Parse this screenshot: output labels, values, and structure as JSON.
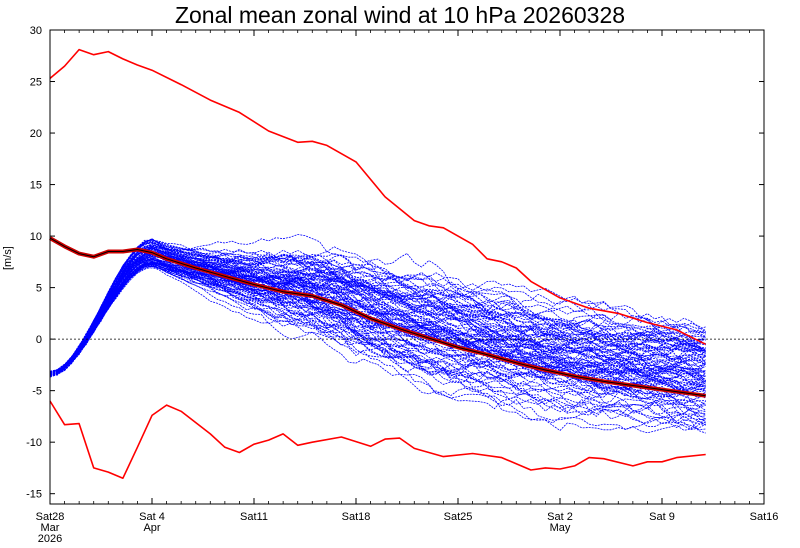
{
  "chart_data": {
    "type": "line",
    "title": "Zonal mean zonal wind at 10 hPa 20260328",
    "ylabel": "[m/s]",
    "ylim": [
      -16,
      30
    ],
    "yticks": [
      -15,
      -10,
      -5,
      0,
      5,
      10,
      15,
      20,
      25,
      30
    ],
    "x_start": "2026-03-28",
    "x_end": "2026-05-16",
    "xticks": [
      {
        "date": "2026-03-28",
        "lines": [
          "Sat28",
          "Mar",
          "2026"
        ]
      },
      {
        "date": "2026-04-04",
        "lines": [
          "Sat 4",
          "Apr"
        ]
      },
      {
        "date": "2026-04-11",
        "lines": [
          "Sat11"
        ]
      },
      {
        "date": "2026-04-18",
        "lines": [
          "Sat18"
        ]
      },
      {
        "date": "2026-04-25",
        "lines": [
          "Sat25"
        ]
      },
      {
        "date": "2026-05-02",
        "lines": [
          "Sat 2",
          "May"
        ]
      },
      {
        "date": "2026-05-09",
        "lines": [
          "Sat 9"
        ]
      },
      {
        "date": "2026-05-16",
        "lines": [
          "Sat16"
        ]
      }
    ],
    "zero_line": true,
    "colors": {
      "max_min": "#ff0000",
      "mean_outer": "#cc0000",
      "mean_inner": "#000000",
      "members": "#0000ff"
    },
    "series": [
      {
        "role": "max",
        "dates": [
          "2026-03-28",
          "2026-03-29",
          "2026-03-30",
          "2026-03-31",
          "2026-04-01",
          "2026-04-02",
          "2026-04-03",
          "2026-04-04",
          "2026-04-06",
          "2026-04-08",
          "2026-04-10",
          "2026-04-12",
          "2026-04-14",
          "2026-04-15",
          "2026-04-16",
          "2026-04-18",
          "2026-04-20",
          "2026-04-22",
          "2026-04-23",
          "2026-04-24",
          "2026-04-26",
          "2026-04-27",
          "2026-04-28",
          "2026-04-29",
          "2026-04-30",
          "2026-05-02",
          "2026-05-04",
          "2026-05-06",
          "2026-05-08",
          "2026-05-10",
          "2026-05-12"
        ],
        "values": [
          25.3,
          26.5,
          28.1,
          27.6,
          27.9,
          27.2,
          26.6,
          26.1,
          24.7,
          23.2,
          22.0,
          20.2,
          19.1,
          19.2,
          18.8,
          17.2,
          13.8,
          11.5,
          11.0,
          10.8,
          9.2,
          7.8,
          7.5,
          6.9,
          5.6,
          4.0,
          3.0,
          2.5,
          1.6,
          0.9,
          -0.5
        ]
      },
      {
        "role": "min",
        "dates": [
          "2026-03-28",
          "2026-03-29",
          "2026-03-30",
          "2026-03-31",
          "2026-04-01",
          "2026-04-02",
          "2026-04-03",
          "2026-04-04",
          "2026-04-05",
          "2026-04-06",
          "2026-04-08",
          "2026-04-09",
          "2026-04-10",
          "2026-04-11",
          "2026-04-12",
          "2026-04-13",
          "2026-04-14",
          "2026-04-15",
          "2026-04-17",
          "2026-04-19",
          "2026-04-20",
          "2026-04-21",
          "2026-04-22",
          "2026-04-24",
          "2026-04-26",
          "2026-04-28",
          "2026-04-30",
          "2026-05-01",
          "2026-05-02",
          "2026-05-03",
          "2026-05-04",
          "2026-05-05",
          "2026-05-07",
          "2026-05-08",
          "2026-05-09",
          "2026-05-10",
          "2026-05-12"
        ],
        "values": [
          -6.0,
          -8.3,
          -8.2,
          -12.5,
          -12.9,
          -13.5,
          -10.5,
          -7.4,
          -6.4,
          -7.0,
          -9.2,
          -10.5,
          -11.0,
          -10.2,
          -9.8,
          -9.2,
          -10.3,
          -10.0,
          -9.5,
          -10.4,
          -9.7,
          -9.6,
          -10.6,
          -11.4,
          -11.1,
          -11.5,
          -12.7,
          -12.5,
          -12.6,
          -12.3,
          -11.5,
          -11.6,
          -12.3,
          -11.9,
          -11.9,
          -11.5,
          -11.2
        ]
      },
      {
        "role": "ensemble_mean",
        "dates": [
          "2026-03-28",
          "2026-03-29",
          "2026-03-30",
          "2026-03-31",
          "2026-04-01",
          "2026-04-02",
          "2026-04-03",
          "2026-04-04",
          "2026-04-05",
          "2026-04-07",
          "2026-04-09",
          "2026-04-11",
          "2026-04-13",
          "2026-04-15",
          "2026-04-17",
          "2026-04-19",
          "2026-04-21",
          "2026-04-23",
          "2026-04-25",
          "2026-04-27",
          "2026-04-29",
          "2026-05-01",
          "2026-05-03",
          "2026-05-05",
          "2026-05-07",
          "2026-05-09",
          "2026-05-11",
          "2026-05-12"
        ],
        "values": [
          9.8,
          9.0,
          8.3,
          8.0,
          8.5,
          8.5,
          8.7,
          8.4,
          7.8,
          6.9,
          6.1,
          5.3,
          4.6,
          4.2,
          3.3,
          2.0,
          1.0,
          0.1,
          -0.8,
          -1.5,
          -2.3,
          -3.0,
          -3.6,
          -4.1,
          -4.5,
          -4.9,
          -5.3,
          -5.5
        ]
      }
    ],
    "members": {
      "count": 100,
      "start_range": [
        -3.6,
        -3.2
      ],
      "peak_date": "2026-04-04",
      "peak_range": [
        7.0,
        9.7
      ],
      "end_date": "2026-05-12",
      "end_range": [
        -8.6,
        0.7
      ]
    }
  }
}
